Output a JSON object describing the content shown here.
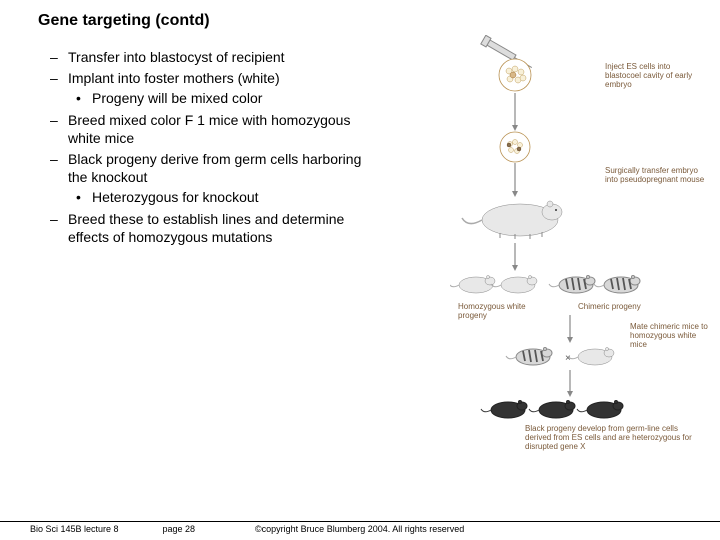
{
  "title": "Gene targeting (contd)",
  "bullets": [
    {
      "text": "Transfer into blastocyst of recipient"
    },
    {
      "text": "Implant into foster mothers (white)",
      "sub": [
        "Progeny will be mixed color"
      ]
    },
    {
      "text": "Breed mixed color F 1 mice with homozygous white mice"
    },
    {
      "text": "Black progeny derive from germ cells harboring the knockout",
      "sub": [
        "Heterozygous for knockout"
      ]
    },
    {
      "text": "Breed these to establish lines and determine effects of homozygous mutations"
    }
  ],
  "diagram": {
    "labels": {
      "inject": "Inject ES cells into blastocoel cavity of early embryo",
      "transfer": "Surgically transfer embryo into pseudopregnant mouse",
      "homo_white": "Homozygous white progeny",
      "chimeric": "Chimeric progeny",
      "mate": "Mate chimeric mice to homozygous white mice",
      "cross": "×",
      "black": "Black progeny develop from germ-line cells derived from ES cells and are heterozygous for disrupted gene X"
    }
  },
  "footer": {
    "left": "Bio Sci 145B lecture 8",
    "mid": "page 28",
    "right": "©copyright Bruce Blumberg 2004. All rights reserved"
  }
}
